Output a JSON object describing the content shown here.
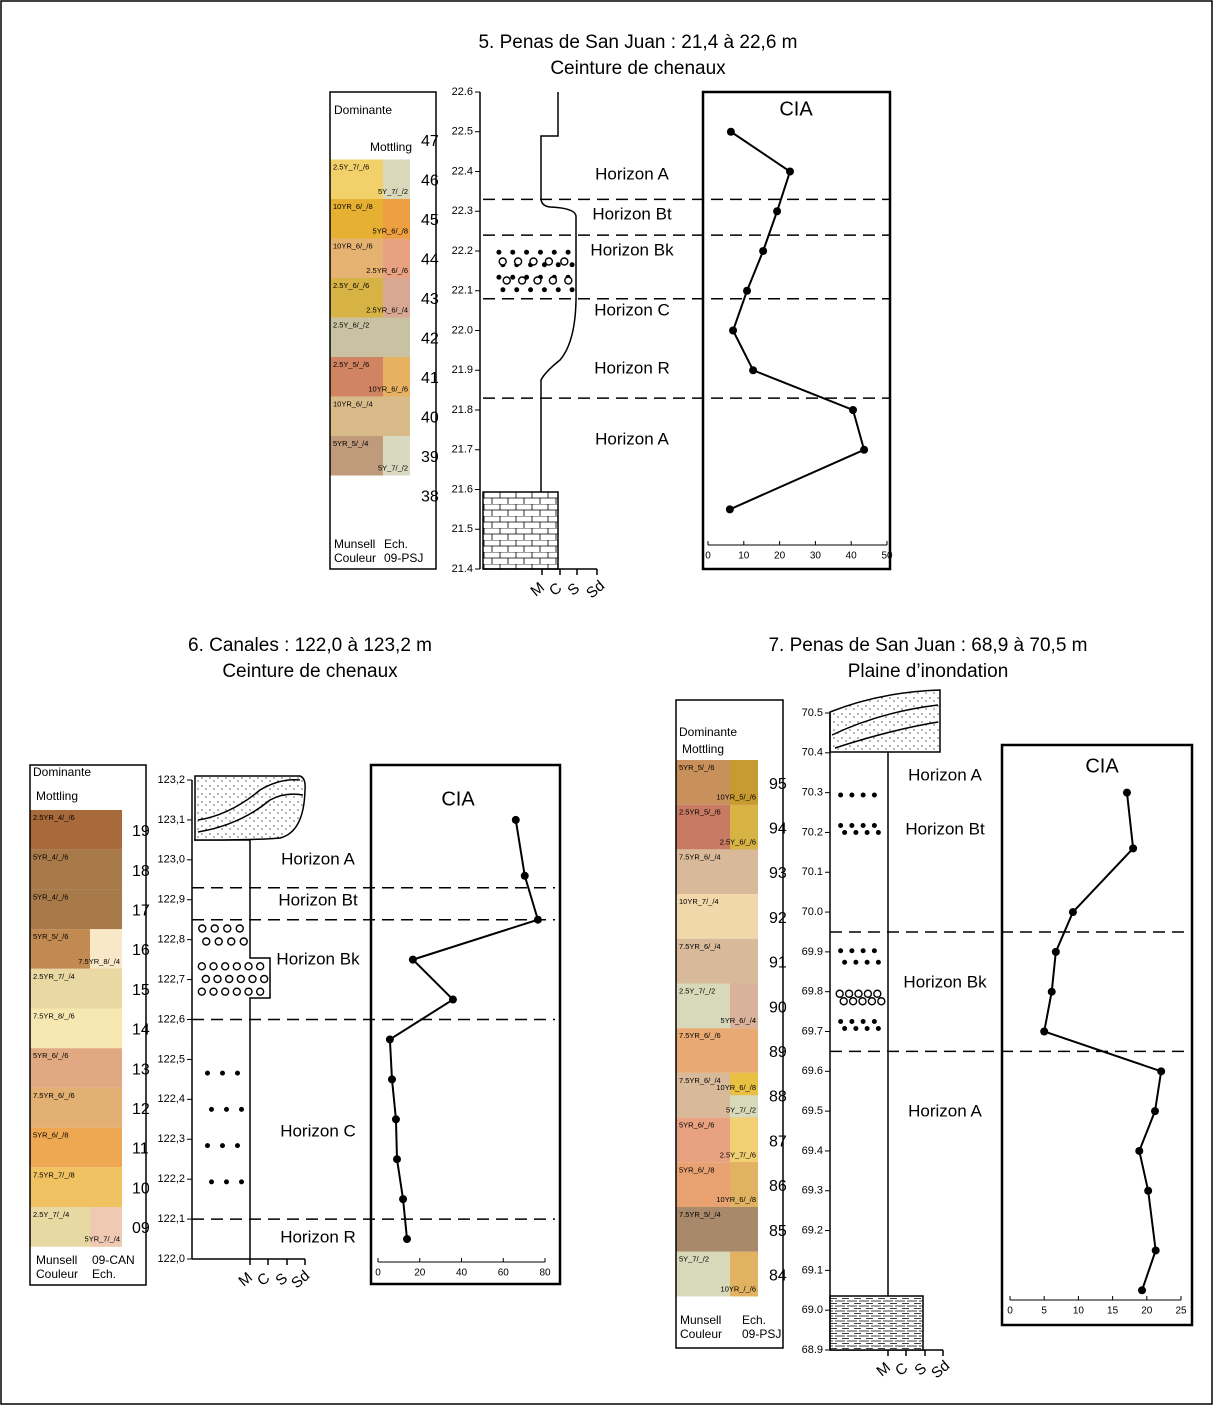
{
  "chart_data": [
    {
      "type": "line",
      "title": "5. Penas de San Juan :  21,4 à 22,6 m",
      "subtitle": "Ceinture de chenaux",
      "cia_label": "CIA",
      "header_dominant": "Dominante",
      "header_mottling": "Mottling",
      "footer_left": [
        "Munsell",
        "Couleur"
      ],
      "footer_right": [
        "Ech.",
        "09-PSJ"
      ],
      "grain_sizes": [
        "M",
        "C",
        "S",
        "Sd"
      ],
      "samples": [
        {
          "id": "47",
          "segments": []
        },
        {
          "id": "46",
          "segments": [
            {
              "label": "2.5Y_7/_/6",
              "color": "#f2d06a"
            },
            {
              "label": "5Y_7/_/2",
              "color": "#d9d8ba"
            }
          ]
        },
        {
          "id": "45",
          "segments": [
            {
              "label": "10YR_6/_/8",
              "color": "#e6b033"
            },
            {
              "label": "5YR_6/_/8",
              "color": "#ee9f42"
            }
          ]
        },
        {
          "id": "44",
          "segments": [
            {
              "label": "10YR_6/_/6",
              "color": "#e6b272"
            },
            {
              "label": "2.5YR_6/_/6",
              "color": "#e8a282"
            }
          ]
        },
        {
          "id": "43",
          "segments": [
            {
              "label": "2.5Y_6/_/6",
              "color": "#d7b244"
            },
            {
              "label": "2.5YR_6/_/4",
              "color": "#d9a892"
            }
          ]
        },
        {
          "id": "42",
          "segments": [
            {
              "label": "2.5Y_6/_/2",
              "color": "#c8c1a2"
            }
          ]
        },
        {
          "id": "41",
          "segments": [
            {
              "label": "2.5Y_5/_/6",
              "color": "#d08462"
            },
            {
              "label": "10YR_6/_/6",
              "color": "#e6b262"
            }
          ]
        },
        {
          "id": "40",
          "segments": [
            {
              "label": "10YR_6/_/4",
              "color": "#d9bb8a"
            }
          ]
        },
        {
          "id": "39",
          "segments": [
            {
              "label": "5YR_5/_/4",
              "color": "#bf9a7b"
            },
            {
              "label": "5Y_7/_/2",
              "color": "#d9d9c0"
            }
          ]
        },
        {
          "id": "38",
          "segments": []
        }
      ],
      "horizons": [
        "Horizon A",
        "Horizon Bt",
        "Horizon Bk",
        "Horizon C",
        "Horizon R",
        "Horizon A"
      ],
      "boundaries": [
        22.33,
        22.24,
        22.08,
        21.83
      ],
      "depth": [
        22.5,
        22.4,
        22.3,
        22.2,
        22.1,
        22.0,
        21.9,
        21.8,
        21.7,
        21.55
      ],
      "cia": [
        6.4,
        22.9,
        19.3,
        15.4,
        10.9,
        7.0,
        12.6,
        40.5,
        43.6,
        6.1
      ],
      "ylim": [
        21.4,
        22.6
      ],
      "yticks": [
        21.4,
        21.5,
        21.6,
        21.7,
        21.8,
        21.9,
        {
          "value": 22.0,
          "label": "22.0"
        },
        22.1,
        22.2,
        22.3,
        22.4,
        22.5,
        22.6
      ],
      "xlim": [
        0,
        50
      ],
      "xticks": [
        0,
        10,
        20,
        30,
        40,
        50
      ]
    },
    {
      "type": "line",
      "title": "6. Canales : 122,0 à 123,2 m",
      "subtitle": "Ceinture de chenaux",
      "cia_label": "CIA",
      "header_dominant": "Dominante",
      "header_mottling": "Mottling",
      "footer_left": [
        "Munsell",
        "Couleur"
      ],
      "footer_right": [
        "09-CAN",
        "Ech."
      ],
      "grain_sizes": [
        "M",
        "C",
        "S",
        "Sd"
      ],
      "samples": [
        {
          "id": "19",
          "segments": [
            {
              "label": "2.5YR_4/_/6",
              "color": "#a86a3a"
            }
          ]
        },
        {
          "id": "18",
          "segments": [
            {
              "label": "5YR_4/_/6",
              "color": "#a87a4a"
            }
          ]
        },
        {
          "id": "17",
          "segments": [
            {
              "label": "5YR_4/_/6",
              "color": "#a87a4a"
            }
          ]
        },
        {
          "id": "16",
          "segments": [
            {
              "label": "5YR_5/_/6",
              "color": "#c08a52"
            },
            {
              "label": "7.5YR_8/_/4",
              "color": "#f8e8c8"
            }
          ]
        },
        {
          "id": "15",
          "segments": [
            {
              "label": "2.5YR_7/_/4",
              "color": "#ead8a2"
            }
          ]
        },
        {
          "id": "14",
          "segments": [
            {
              "label": "7.5YR_8/_/6",
              "color": "#f7e8b2"
            }
          ]
        },
        {
          "id": "13",
          "segments": [
            {
              "label": "5YR_6/_/6",
              "color": "#e0a982"
            }
          ]
        },
        {
          "id": "12",
          "segments": [
            {
              "label": "7.5YR_6/_/6",
              "color": "#e1b072"
            }
          ]
        },
        {
          "id": "11",
          "segments": [
            {
              "label": "5YR_6/_/8",
              "color": "#efa852"
            }
          ]
        },
        {
          "id": "10",
          "segments": [
            {
              "label": "7.5YR_7/_/8",
              "color": "#f1c262"
            }
          ]
        },
        {
          "id": "09",
          "segments": [
            {
              "label": "2.5Y_7/_/4",
              "color": "#e8d8a2"
            },
            {
              "label": "5YR_7/_/4",
              "color": "#f0c9b2"
            }
          ]
        }
      ],
      "horizons": [
        "Horizon A",
        "Horizon Bt",
        "Horizon Bk",
        "Horizon C",
        "Horizon R"
      ],
      "boundaries": [
        122.93,
        122.85,
        122.6,
        122.1
      ],
      "depth": [
        123.1,
        122.96,
        122.85,
        122.75,
        122.65,
        122.55,
        122.45,
        122.35,
        122.25,
        122.15,
        122.05
      ],
      "cia": [
        66,
        70.3,
        76.6,
        16.7,
        35.9,
        5.7,
        6.7,
        8.6,
        9.1,
        12.0,
        13.9
      ],
      "ylim": [
        122.0,
        123.2
      ],
      "yticks": [
        {
          "value": 122.0,
          "label": "122,0"
        },
        {
          "value": 122.1,
          "label": "122,1"
        },
        {
          "value": 122.2,
          "label": "122,2"
        },
        {
          "value": 122.3,
          "label": "122,3"
        },
        {
          "value": 122.4,
          "label": "122,4"
        },
        {
          "value": 122.5,
          "label": "122,5"
        },
        {
          "value": 122.6,
          "label": "122,6"
        },
        {
          "value": 122.7,
          "label": "122,7"
        },
        {
          "value": 122.8,
          "label": "122,8"
        },
        {
          "value": 122.9,
          "label": "122,9"
        },
        {
          "value": 123.0,
          "label": "123,0"
        },
        {
          "value": 123.1,
          "label": "123,1"
        },
        {
          "value": 123.2,
          "label": "123,2"
        }
      ],
      "xlim": [
        0,
        80
      ],
      "xticks": [
        0,
        20,
        40,
        60,
        80
      ]
    },
    {
      "type": "line",
      "title": "7. Penas de San Juan : 68,9 à 70,5 m",
      "subtitle": "Plaine d’inondation",
      "cia_label": "CIA",
      "header_dominant": "Dominante",
      "header_mottling": "Mottling",
      "footer_left": [
        "Munsell",
        "Couleur"
      ],
      "footer_right": [
        "Ech.",
        "09-PSJ"
      ],
      "grain_sizes": [
        "M",
        "C",
        "S",
        "Sd"
      ],
      "samples": [
        {
          "id": "95",
          "segments": [
            {
              "label": "5YR_5/_/6",
              "color": "#c8905a"
            },
            {
              "label": "10YR_5/_/6",
              "color": "#c89a32"
            }
          ]
        },
        {
          "id": "94",
          "segments": [
            {
              "label": "2.5YR_5/_/6",
              "color": "#c87a62"
            },
            {
              "label": "2.5Y_6/_/6",
              "color": "#d7b244"
            }
          ]
        },
        {
          "id": "93",
          "segments": [
            {
              "label": "7.5YR_6/_/4",
              "color": "#d8ba9a"
            }
          ]
        },
        {
          "id": "92",
          "segments": [
            {
              "label": "10YR_7/_/4",
              "color": "#f0d8aa"
            }
          ]
        },
        {
          "id": "91",
          "segments": [
            {
              "label": "7.5YR_6/_/4",
              "color": "#d8ba9a"
            }
          ]
        },
        {
          "id": "90",
          "segments": [
            {
              "label": "2.5Y_7/_/2",
              "color": "#d8d8ba"
            },
            {
              "label": "5YR_6/_/4",
              "color": "#d8b29a"
            }
          ]
        },
        {
          "id": "89",
          "segments": [
            {
              "label": "7.5YR_6/_/6",
              "color": "#e8aa72"
            }
          ]
        },
        {
          "id": "88",
          "segments": [
            {
              "label": "7.5YR_6/_/4",
              "color": "#d8ba9a"
            },
            {
              "label": "10YR_6/_/8",
              "color": "#e8c042"
            },
            {
              "label": "5Y_7/_/2",
              "color": "#d8d8ba"
            }
          ]
        },
        {
          "id": "87",
          "segments": [
            {
              "label": "5YR_6/_/6",
              "color": "#e8a282"
            },
            {
              "label": "2.5Y_7/_/6",
              "color": "#f0d072"
            }
          ]
        },
        {
          "id": "86",
          "segments": [
            {
              "label": "5YR_6/_/8",
              "color": "#e8a272"
            },
            {
              "label": "10YR_6/_/8",
              "color": "#e0b262"
            }
          ]
        },
        {
          "id": "85",
          "segments": [
            {
              "label": "7.5YR_5/_/4",
              "color": "#a88a6a"
            }
          ]
        },
        {
          "id": "84",
          "segments": [
            {
              "label": "5Y_7/_/2",
              "color": "#d8d8ba"
            },
            {
              "label": "10YR_/_/6",
              "color": "#e0b262"
            }
          ]
        }
      ],
      "horizons": [
        "Horizon A",
        "Horizon Bt",
        "Horizon Bk",
        "Horizon A"
      ],
      "boundaries": [
        69.95,
        69.65
      ],
      "depth": [
        70.3,
        70.16,
        70.0,
        69.9,
        69.8,
        69.7,
        69.6,
        69.5,
        69.4,
        69.3,
        69.15,
        69.05
      ],
      "cia": [
        17.1,
        18.0,
        9.2,
        6.7,
        6.1,
        5.0,
        22.1,
        21.2,
        18.9,
        20.2,
        21.3,
        19.3
      ],
      "ylim": [
        68.9,
        70.5
      ],
      "yticks": [
        68.9,
        {
          "value": 69.0,
          "label": "69.0"
        },
        69.1,
        69.2,
        69.3,
        69.4,
        69.5,
        69.6,
        69.7,
        69.8,
        69.9,
        {
          "value": 70.0,
          "label": "70.0"
        },
        70.1,
        70.2,
        70.3,
        70.4,
        70.5
      ],
      "xlim": [
        0,
        25
      ],
      "xticks": [
        0,
        5,
        10,
        15,
        20,
        25
      ]
    }
  ]
}
